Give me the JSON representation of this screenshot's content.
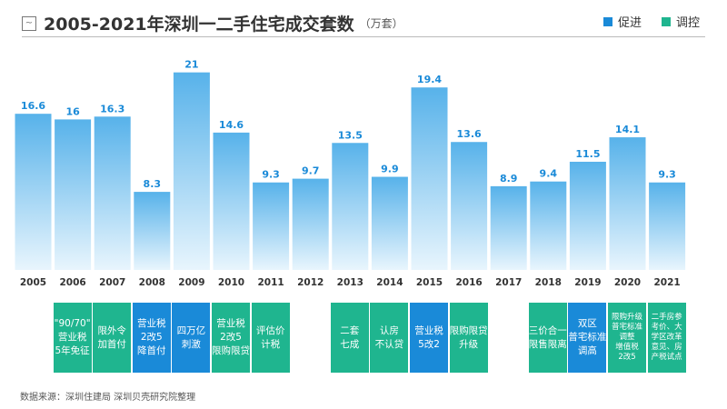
{
  "header": {
    "icon": "line-chart-icon",
    "title": "2005-2021年深圳一二手住宅成交套数",
    "unit": "（万套）"
  },
  "legend": [
    {
      "label": "促进",
      "color": "#1a8ad8"
    },
    {
      "label": "调控",
      "color": "#1fb58f"
    }
  ],
  "chart_data": {
    "type": "bar",
    "title": "2005-2021年深圳一二手住宅成交套数",
    "ylabel": "万套",
    "categories": [
      "2005",
      "2006",
      "2007",
      "2008",
      "2009",
      "2010",
      "2011",
      "2012",
      "2013",
      "2014",
      "2015",
      "2016",
      "2017",
      "2018",
      "2019",
      "2020",
      "2021"
    ],
    "values": [
      16.6,
      16,
      16.3,
      8.3,
      21,
      14.6,
      9.3,
      9.7,
      13.5,
      9.9,
      19.4,
      13.6,
      8.9,
      9.4,
      11.5,
      14.1,
      9.3
    ],
    "labels": [
      "16.6",
      "16",
      "16.3",
      "8.3",
      "21",
      "14.6",
      "9.3",
      "9.7",
      "13.5",
      "9.9",
      "19.4",
      "13.6",
      "8.9",
      "9.4",
      "11.5",
      "14.1",
      "9.3"
    ],
    "ylim": [
      0,
      21
    ],
    "grid": false,
    "legend_position": "top-right"
  },
  "policies": [
    {
      "year": "2006",
      "text": "\"90/70\"\n营业税\n5年免征",
      "type": "调控"
    },
    {
      "year": "2007",
      "text": "限外令\n加首付",
      "type": "调控"
    },
    {
      "year": "2008",
      "text": "营业税\n2改5\n降首付",
      "type": "促进"
    },
    {
      "year": "2009",
      "text": "四万亿\n刺激",
      "type": "促进"
    },
    {
      "year": "2010",
      "text": "营业税\n2改5\n限购限贷",
      "type": "调控"
    },
    {
      "year": "2011",
      "text": "评估价\n计税",
      "type": "调控"
    },
    {
      "year": "2013",
      "text": "二套\n七成",
      "type": "调控"
    },
    {
      "year": "2014",
      "text": "认房\n不认贷",
      "type": "调控"
    },
    {
      "year": "2015",
      "text": "营业税\n5改2",
      "type": "促进"
    },
    {
      "year": "2016",
      "text": "限购限贷\n升级",
      "type": "调控"
    },
    {
      "year": "2018",
      "text": "三价合一\n限售限离",
      "type": "调控"
    },
    {
      "year": "2019",
      "text": "双区\n普宅标准\n调高",
      "type": "促进"
    },
    {
      "year": "2020",
      "text": "限购升级\n普宅标准\n调整\n增值税\n2改5",
      "type": "调控"
    },
    {
      "year": "2021",
      "text": "二手房参\n考价、大\n学区改革\n意见、房\n产税试点",
      "type": "调控"
    }
  ],
  "source": "数据来源：深圳住建局 深圳贝壳研究院整理"
}
